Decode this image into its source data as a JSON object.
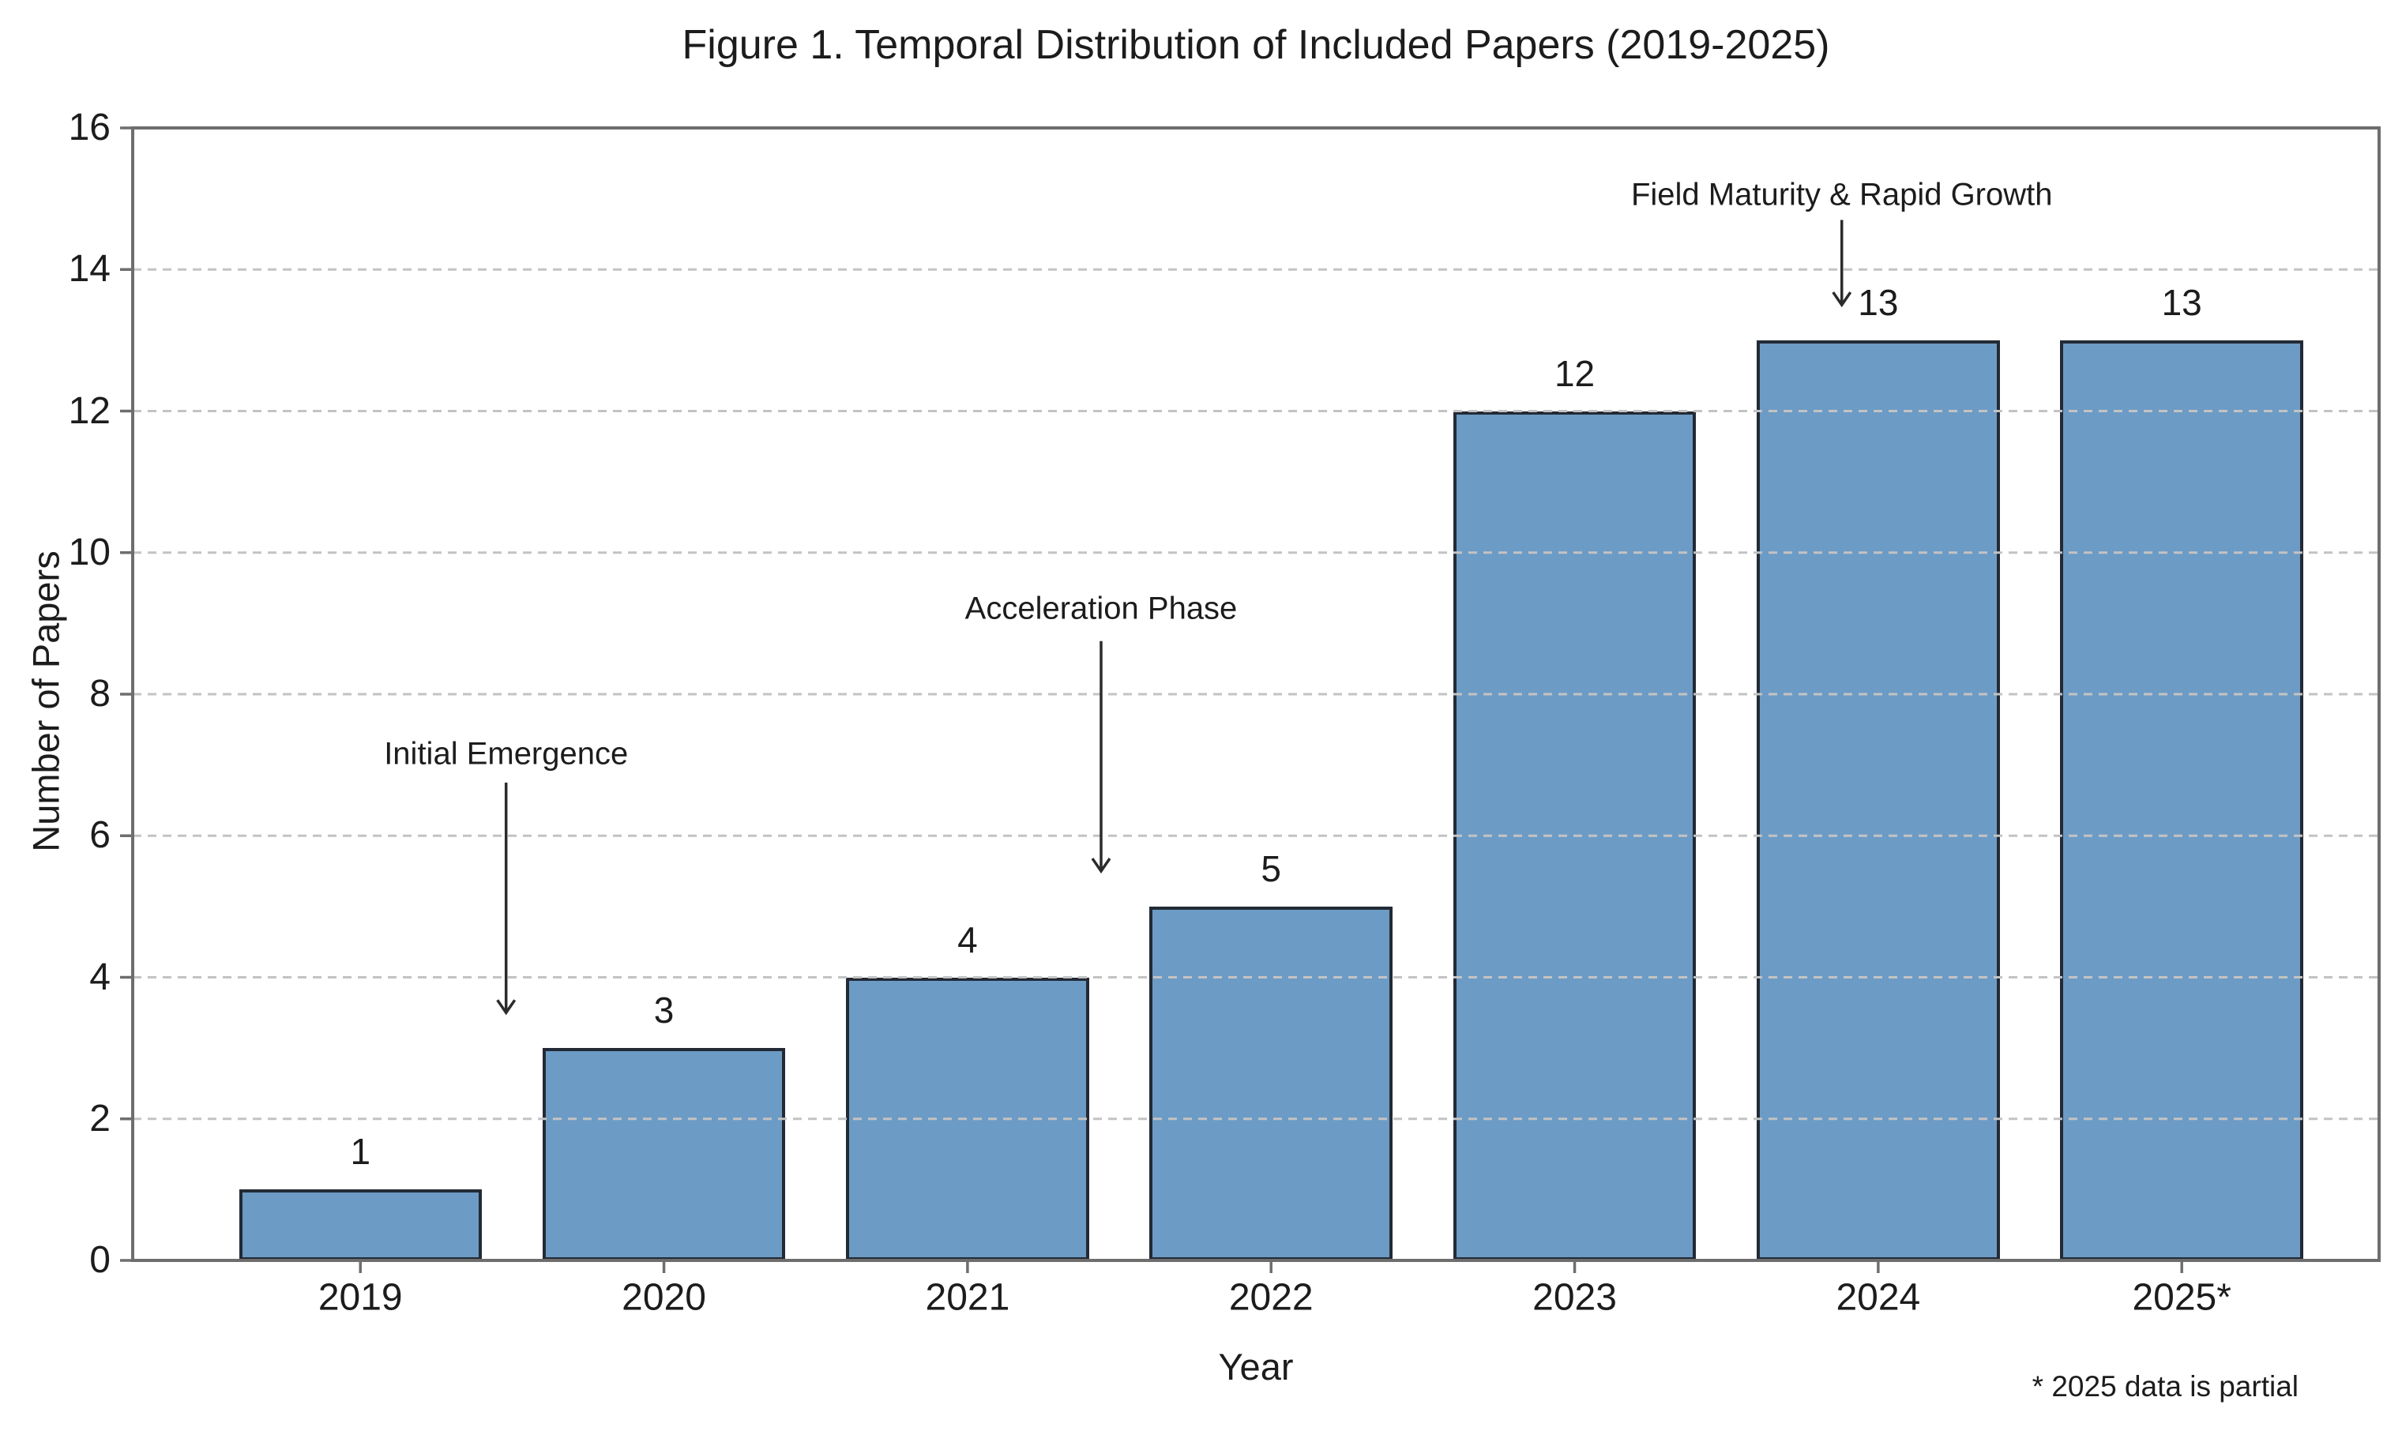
{
  "chart_data": {
    "type": "bar",
    "title": "Figure 1. Temporal Distribution of Included Papers (2019-2025)",
    "xlabel": "Year",
    "ylabel": "Number of Papers",
    "footnote": "* 2025 data is partial",
    "categories": [
      "2019",
      "2020",
      "2021",
      "2022",
      "2023",
      "2024",
      "2025*"
    ],
    "values": [
      1,
      3,
      4,
      5,
      12,
      13,
      13
    ],
    "bar_labels": [
      "1",
      "3",
      "4",
      "5",
      "12",
      "13",
      "13"
    ],
    "ylim": [
      0,
      16
    ],
    "yticks": [
      0,
      2,
      4,
      6,
      8,
      10,
      12,
      14,
      16
    ],
    "grid": "horizontal-dashed-above-bars",
    "legend": "none",
    "colors": {
      "bar_fill": "#6C9BC5",
      "bar_edge": "#232A35",
      "gridline": "#c3c3c3",
      "spine": "#6e6e6e",
      "arrow": "#2b2b2b",
      "text": "#1c1c1c",
      "background": "#ffffff"
    },
    "annotations": [
      {
        "text": "Initial Emergence",
        "x": 0.48,
        "text_y": 7.15,
        "arrow_start_y": 6.75,
        "arrow_end_y": 3.5
      },
      {
        "text": "Acceleration Phase",
        "x": 2.44,
        "text_y": 9.2,
        "arrow_start_y": 8.75,
        "arrow_end_y": 5.5
      },
      {
        "text": "Field Maturity & Rapid Growth",
        "x": 4.88,
        "text_y": 15.05,
        "arrow_start_y": 14.7,
        "arrow_end_y": 13.5
      }
    ]
  }
}
